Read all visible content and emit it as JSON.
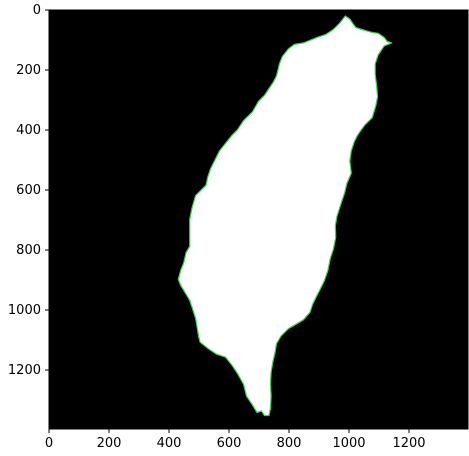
{
  "figure": {
    "image_width": 1400,
    "image_height": 1400,
    "x_ticks": [
      "0",
      "200",
      "400",
      "600",
      "800",
      "1000",
      "1200"
    ],
    "y_ticks": [
      "0",
      "200",
      "400",
      "600",
      "800",
      "1000",
      "1200"
    ],
    "colors": {
      "background": "#000000",
      "mask": "#ffffff",
      "contour": "#39d353",
      "frame": "#000000"
    }
  },
  "mask_outline": [
    [
      990,
      20
    ],
    [
      1005,
      30
    ],
    [
      1015,
      45
    ],
    [
      1025,
      58
    ],
    [
      1045,
      65
    ],
    [
      1080,
      75
    ],
    [
      1100,
      78
    ],
    [
      1120,
      92
    ],
    [
      1130,
      105
    ],
    [
      1145,
      110
    ],
    [
      1120,
      120
    ],
    [
      1100,
      150
    ],
    [
      1090,
      180
    ],
    [
      1090,
      215
    ],
    [
      1095,
      255
    ],
    [
      1098,
      290
    ],
    [
      1092,
      320
    ],
    [
      1080,
      360
    ],
    [
      1055,
      385
    ],
    [
      1040,
      405
    ],
    [
      1030,
      420
    ],
    [
      1020,
      440
    ],
    [
      1010,
      470
    ],
    [
      1005,
      505
    ],
    [
      1010,
      545
    ],
    [
      995,
      580
    ],
    [
      988,
      610
    ],
    [
      978,
      640
    ],
    [
      970,
      665
    ],
    [
      962,
      690
    ],
    [
      957,
      720
    ],
    [
      958,
      760
    ],
    [
      950,
      800
    ],
    [
      940,
      830
    ],
    [
      932,
      870
    ],
    [
      920,
      905
    ],
    [
      905,
      935
    ],
    [
      892,
      960
    ],
    [
      880,
      985
    ],
    [
      872,
      1010
    ],
    [
      850,
      1035
    ],
    [
      825,
      1050
    ],
    [
      800,
      1065
    ],
    [
      775,
      1090
    ],
    [
      760,
      1115
    ],
    [
      755,
      1145
    ],
    [
      748,
      1175
    ],
    [
      742,
      1210
    ],
    [
      740,
      1250
    ],
    [
      742,
      1290
    ],
    [
      740,
      1330
    ],
    [
      735,
      1355
    ],
    [
      720,
      1355
    ],
    [
      710,
      1340
    ],
    [
      695,
      1345
    ],
    [
      680,
      1320
    ],
    [
      660,
      1290
    ],
    [
      650,
      1250
    ],
    [
      630,
      1215
    ],
    [
      610,
      1185
    ],
    [
      590,
      1160
    ],
    [
      560,
      1150
    ],
    [
      530,
      1130
    ],
    [
      505,
      1110
    ],
    [
      500,
      1090
    ],
    [
      495,
      1060
    ],
    [
      490,
      1030
    ],
    [
      480,
      1000
    ],
    [
      470,
      970
    ],
    [
      455,
      945
    ],
    [
      440,
      920
    ],
    [
      432,
      900
    ],
    [
      440,
      870
    ],
    [
      450,
      845
    ],
    [
      458,
      810
    ],
    [
      470,
      790
    ],
    [
      470,
      745
    ],
    [
      470,
      700
    ],
    [
      478,
      660
    ],
    [
      490,
      620
    ],
    [
      510,
      600
    ],
    [
      525,
      585
    ],
    [
      530,
      560
    ],
    [
      540,
      530
    ],
    [
      555,
      500
    ],
    [
      570,
      470
    ],
    [
      590,
      445
    ],
    [
      610,
      420
    ],
    [
      630,
      400
    ],
    [
      650,
      370
    ],
    [
      680,
      340
    ],
    [
      700,
      305
    ],
    [
      720,
      285
    ],
    [
      730,
      270
    ],
    [
      740,
      255
    ],
    [
      750,
      240
    ],
    [
      760,
      220
    ],
    [
      765,
      200
    ],
    [
      770,
      180
    ],
    [
      780,
      155
    ],
    [
      800,
      130
    ],
    [
      820,
      115
    ],
    [
      850,
      110
    ],
    [
      875,
      100
    ],
    [
      900,
      90
    ],
    [
      925,
      82
    ],
    [
      950,
      65
    ],
    [
      970,
      45
    ]
  ]
}
